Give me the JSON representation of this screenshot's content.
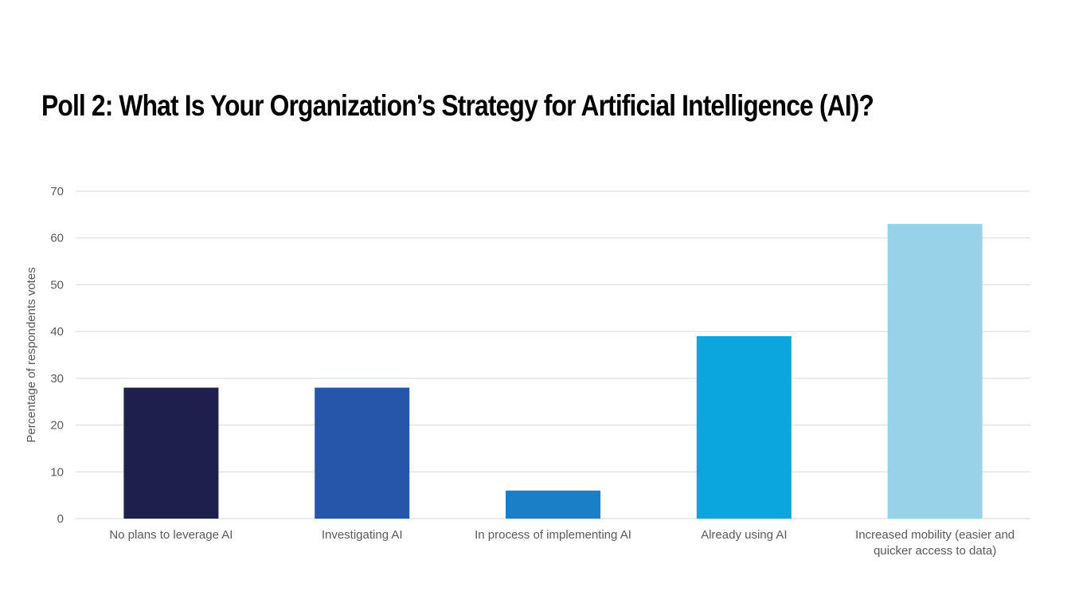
{
  "slide": {
    "title": "Poll 2: What Is Your Organization’s Strategy for Artificial Intelligence (AI)?"
  },
  "chart_data": {
    "type": "bar",
    "title": "",
    "xlabel": "",
    "ylabel": "Percentage of respondents votes",
    "ylim": [
      0,
      70
    ],
    "yticks": [
      0,
      10,
      20,
      30,
      40,
      50,
      60,
      70
    ],
    "grid": true,
    "legend": "none",
    "categories": [
      "No plans to leverage AI",
      "Investigating AI",
      "In process of implementing AI",
      "Already using AI",
      "Increased mobility (easier and quicker access to data)"
    ],
    "category_lines": [
      [
        "No plans to leverage AI"
      ],
      [
        "Investigating AI"
      ],
      [
        "In process of implementing AI"
      ],
      [
        "Already using AI"
      ],
      [
        "Increased mobility (easier and",
        "quicker access to data)"
      ]
    ],
    "values": [
      28,
      28,
      6,
      39,
      63
    ],
    "colors": [
      "#1f1f4d",
      "#2457a8",
      "#1a7fc7",
      "#0aa6dd",
      "#97d3e8"
    ],
    "gridline_color": "#d9d9d9"
  }
}
